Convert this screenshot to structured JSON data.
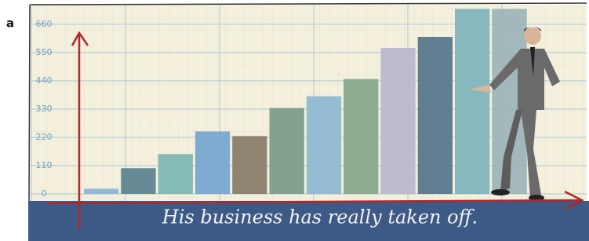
{
  "panel_label": "a",
  "chart_data": {
    "type": "bar",
    "caption": "His business has really taken off.",
    "values": [
      20,
      100,
      155,
      243,
      225,
      334,
      380,
      447,
      568,
      611,
      720,
      720
    ],
    "colors": [
      "#8fb3d6",
      "#5e8592",
      "#7fb6b2",
      "#78a7cf",
      "#8a7d6c",
      "#7b9c8a",
      "#8fb8d0",
      "#86a98c",
      "#b9b8cc",
      "#58778d",
      "#7fb4bc",
      "#9db4b7"
    ],
    "ylim": [
      0,
      730
    ],
    "yticks": [
      0,
      110,
      220,
      330,
      440,
      550,
      660
    ],
    "grid": true
  }
}
